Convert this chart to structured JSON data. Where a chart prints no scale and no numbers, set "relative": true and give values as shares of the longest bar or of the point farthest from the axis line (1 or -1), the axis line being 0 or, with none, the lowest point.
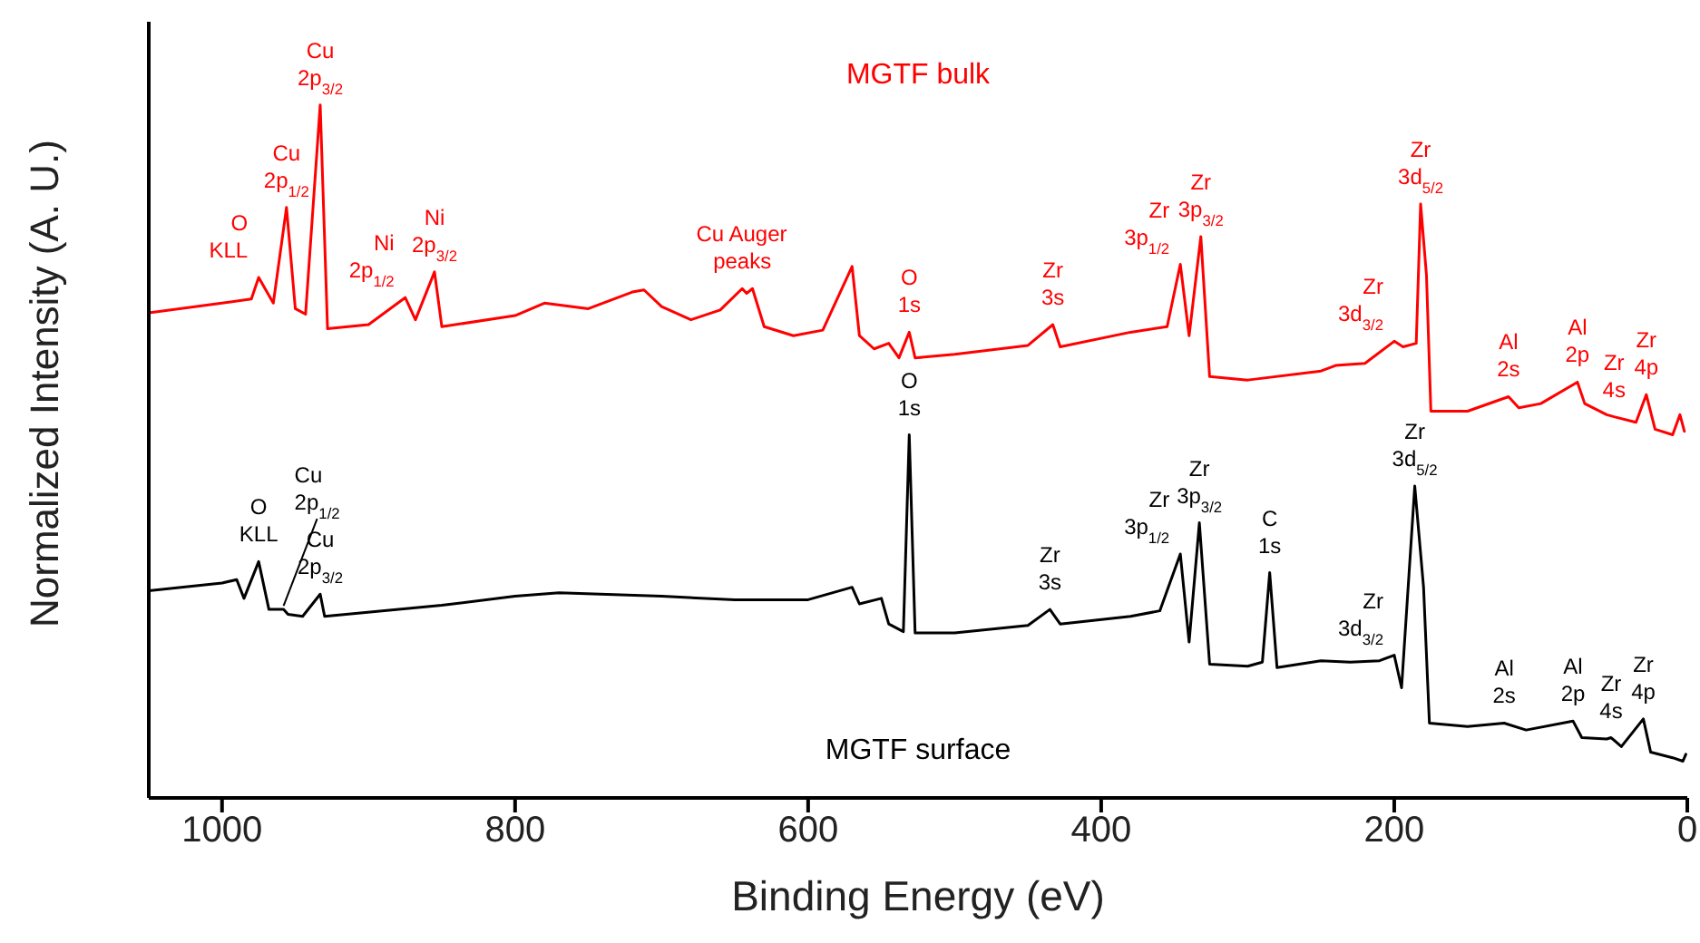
{
  "chart_data": {
    "type": "line",
    "relative": true,
    "xlabel": "Binding Energy (eV)",
    "ylabel": "Normalized Intensity (A. U.)",
    "xlim": [
      1050,
      0
    ],
    "xticks": [
      1000,
      800,
      600,
      400,
      200,
      0
    ],
    "series": [
      {
        "name": "MGTF bulk",
        "color": "#ff0000",
        "x": [
          1050,
          1000,
          980,
          975,
          965,
          956,
          950,
          943,
          933,
          928,
          900,
          875,
          868,
          855,
          850,
          800,
          780,
          750,
          720,
          712,
          700,
          680,
          660,
          645,
          642,
          638,
          630,
          610,
          590,
          570,
          565,
          555,
          545,
          538,
          531,
          527,
          500,
          450,
          433,
          428,
          380,
          355,
          346,
          340,
          332,
          326,
          300,
          250,
          240,
          220,
          200,
          194,
          185,
          182,
          178,
          175,
          150,
          122,
          115,
          100,
          75,
          70,
          55,
          50,
          35,
          28,
          22,
          10,
          5,
          2
        ],
        "values": [
          0.7,
          0.714,
          0.72,
          0.751,
          0.714,
          0.852,
          0.706,
          0.698,
          1.0,
          0.677,
          0.683,
          0.722,
          0.69,
          0.759,
          0.68,
          0.696,
          0.714,
          0.706,
          0.73,
          0.733,
          0.709,
          0.69,
          0.704,
          0.735,
          0.728,
          0.735,
          0.68,
          0.667,
          0.675,
          0.767,
          0.667,
          0.648,
          0.656,
          0.635,
          0.672,
          0.635,
          0.64,
          0.653,
          0.683,
          0.651,
          0.672,
          0.68,
          0.77,
          0.667,
          0.81,
          0.608,
          0.603,
          0.616,
          0.624,
          0.627,
          0.659,
          0.651,
          0.656,
          0.857,
          0.754,
          0.558,
          0.558,
          0.579,
          0.563,
          0.569,
          0.6,
          0.569,
          0.553,
          0.55,
          0.542,
          0.582,
          0.532,
          0.524,
          0.553,
          0.529
        ]
      },
      {
        "name": "MGTF surface",
        "color": "#000000",
        "x": [
          1050,
          1000,
          990,
          985,
          975,
          968,
          958,
          955,
          945,
          933,
          930,
          850,
          800,
          770,
          700,
          650,
          600,
          570,
          565,
          550,
          545,
          535,
          531,
          527,
          500,
          450,
          435,
          428,
          380,
          360,
          346,
          340,
          333,
          326,
          300,
          290,
          285,
          280,
          250,
          230,
          210,
          200,
          195,
          186,
          180,
          176,
          150,
          125,
          110,
          78,
          72,
          55,
          52,
          45,
          30,
          25,
          10,
          3,
          1
        ],
        "values": [
          0.299,
          0.31,
          0.315,
          0.288,
          0.341,
          0.272,
          0.272,
          0.265,
          0.262,
          0.294,
          0.262,
          0.278,
          0.291,
          0.296,
          0.291,
          0.286,
          0.286,
          0.304,
          0.28,
          0.288,
          0.251,
          0.24,
          0.524,
          0.238,
          0.238,
          0.249,
          0.272,
          0.251,
          0.262,
          0.27,
          0.352,
          0.225,
          0.397,
          0.193,
          0.19,
          0.196,
          0.325,
          0.188,
          0.198,
          0.196,
          0.198,
          0.206,
          0.159,
          0.45,
          0.304,
          0.108,
          0.103,
          0.108,
          0.098,
          0.111,
          0.087,
          0.085,
          0.087,
          0.074,
          0.114,
          0.066,
          0.058,
          0.053,
          0.063
        ]
      }
    ],
    "annotations": [
      {
        "text": "O\nKLL",
        "x": 975,
        "y": 0.751
      },
      {
        "text": "Cu\n2p$_{1/2}$",
        "x": 956,
        "y": 0.852
      },
      {
        "text": "Cu\n2p$_{3/2}$",
        "x": 933,
        "y": 1.0
      },
      {
        "text": "Ni\n2p$_{1/2}$",
        "x": 875,
        "y": 0.722
      },
      {
        "text": "Ni\n2p$_{3/2}$",
        "x": 855,
        "y": 0.759
      },
      {
        "text": "Cu Auger\npeaks",
        "x": 645,
        "y": 0.735
      },
      {
        "text": "O\n1s",
        "x": 531,
        "y": 0.672
      },
      {
        "text": "Zr\n3s",
        "x": 433,
        "y": 0.683
      },
      {
        "text": "Zr\n3p$_{1/2}$",
        "x": 346,
        "y": 0.77
      },
      {
        "text": "Zr\n3p$_{3/2}$",
        "x": 332,
        "y": 0.81
      },
      {
        "text": "Zr\n3d$_{3/2}$",
        "x": 200,
        "y": 0.659
      },
      {
        "text": "Zr\n3d$_{5/2}$",
        "x": 182,
        "y": 0.857
      },
      {
        "text": "Al\n2s",
        "x": 122,
        "y": 0.579
      },
      {
        "text": "Al\n2p",
        "x": 75,
        "y": 0.6
      },
      {
        "text": "Zr\n4s",
        "x": 50,
        "y": 0.55
      },
      {
        "text": "Zr\n4p",
        "x": 28,
        "y": 0.582
      },
      {
        "text": "O\nKLL",
        "x": 975,
        "y": 0.341
      },
      {
        "text": "Cu\n2p$_{1/2}$",
        "x": 958,
        "y": 0.272
      },
      {
        "text": "Cu\n2p$_{3/2}$",
        "x": 933,
        "y": 0.294
      },
      {
        "text": "O\n1s",
        "x": 531,
        "y": 0.524
      },
      {
        "text": "Zr\n3s",
        "x": 435,
        "y": 0.272
      },
      {
        "text": "Zr\n3p$_{1/2}$",
        "x": 346,
        "y": 0.352
      },
      {
        "text": "Zr\n3p$_{3/2}$",
        "x": 333,
        "y": 0.397
      },
      {
        "text": "C\n1s",
        "x": 285,
        "y": 0.325
      },
      {
        "text": "Zr\n3d$_{3/2}$",
        "x": 200,
        "y": 0.206
      },
      {
        "text": "Zr\n3d$_{5/2}$",
        "x": 186,
        "y": 0.45
      },
      {
        "text": "Al\n2s",
        "x": 125,
        "y": 0.108
      },
      {
        "text": "Al\n2p",
        "x": 78,
        "y": 0.111
      },
      {
        "text": "Zr\n4s",
        "x": 52,
        "y": 0.087
      },
      {
        "text": "Zr\n4p",
        "x": 30,
        "y": 0.114
      }
    ]
  }
}
